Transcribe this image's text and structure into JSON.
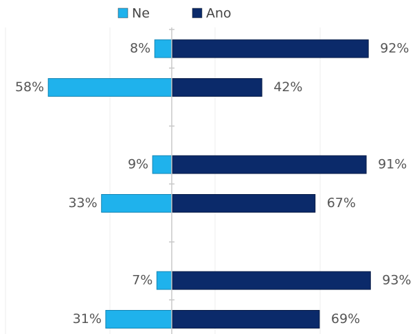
{
  "chart_data": {
    "type": "diverging_bar",
    "categories": [
      null,
      null,
      null,
      null,
      null,
      null
    ],
    "series": [
      {
        "name": "Ne",
        "color": "#1fb2ec",
        "side": "left",
        "values": [
          8,
          58,
          9,
          33,
          7,
          31
        ],
        "value_labels": [
          "8%",
          "58%",
          "9%",
          "33%",
          "7%",
          "31%"
        ]
      },
      {
        "name": "Ano",
        "color": "#0b2a6a",
        "side": "right",
        "values": [
          92,
          42,
          91,
          67,
          93,
          69
        ],
        "value_labels": [
          "92%",
          "42%",
          "91%",
          "67%",
          "93%",
          "69%"
        ]
      }
    ],
    "legend": "top"
  }
}
